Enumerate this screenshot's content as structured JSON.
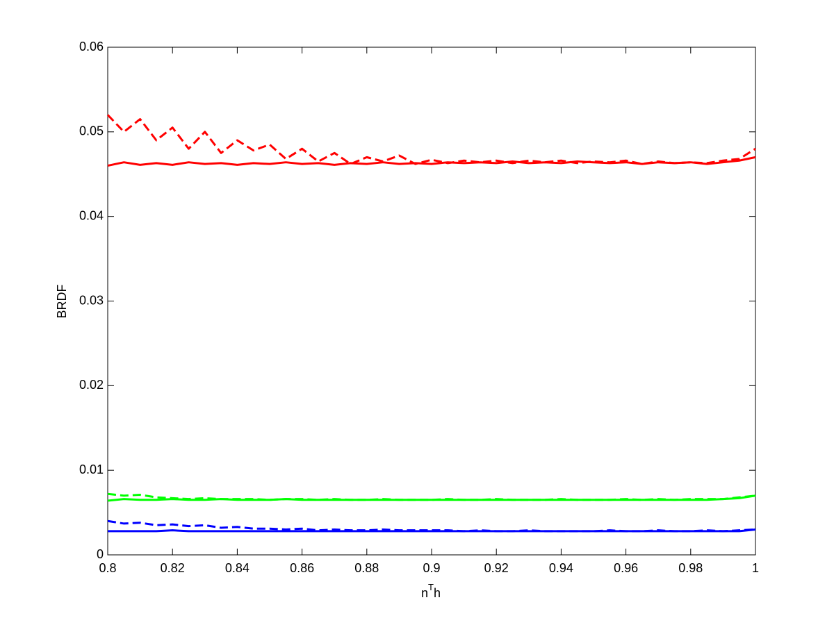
{
  "chart_data": {
    "type": "line",
    "xlabel": [
      "n",
      "T",
      "h"
    ],
    "ylabel": "BRDF",
    "x": [
      0.8,
      0.805,
      0.81,
      0.815,
      0.82,
      0.825,
      0.83,
      0.835,
      0.84,
      0.845,
      0.85,
      0.855,
      0.86,
      0.865,
      0.87,
      0.875,
      0.88,
      0.885,
      0.89,
      0.895,
      0.9,
      0.905,
      0.91,
      0.915,
      0.92,
      0.925,
      0.93,
      0.935,
      0.94,
      0.945,
      0.95,
      0.955,
      0.96,
      0.965,
      0.97,
      0.975,
      0.98,
      0.985,
      0.99,
      0.995,
      1
    ],
    "series": [
      {
        "color": "#ff0000",
        "dash": false,
        "values": [
          0.046,
          0.0464,
          0.0461,
          0.0463,
          0.0461,
          0.0464,
          0.0462,
          0.0463,
          0.0461,
          0.0463,
          0.0462,
          0.0464,
          0.0462,
          0.0463,
          0.0461,
          0.0463,
          0.0462,
          0.0464,
          0.0462,
          0.0463,
          0.0462,
          0.0464,
          0.0463,
          0.0464,
          0.0463,
          0.0465,
          0.0463,
          0.0464,
          0.0463,
          0.0465,
          0.0464,
          0.0463,
          0.0464,
          0.0462,
          0.0464,
          0.0463,
          0.0464,
          0.0462,
          0.0464,
          0.0466,
          0.047
        ]
      },
      {
        "color": "#ff0000",
        "dash": true,
        "values": [
          0.052,
          0.05,
          0.0515,
          0.049,
          0.0505,
          0.048,
          0.05,
          0.0475,
          0.049,
          0.0478,
          0.0485,
          0.0468,
          0.048,
          0.0465,
          0.0475,
          0.0462,
          0.047,
          0.0465,
          0.0472,
          0.0462,
          0.0467,
          0.0463,
          0.0466,
          0.0464,
          0.0466,
          0.0463,
          0.0466,
          0.0464,
          0.0466,
          0.0463,
          0.0465,
          0.0464,
          0.0466,
          0.0462,
          0.0465,
          0.0463,
          0.0464,
          0.0463,
          0.0466,
          0.0468,
          0.048
        ]
      },
      {
        "color": "#00ff00",
        "dash": false,
        "values": [
          0.0064,
          0.0066,
          0.0065,
          0.0065,
          0.0066,
          0.0065,
          0.0065,
          0.0066,
          0.0065,
          0.0065,
          0.0065,
          0.0066,
          0.0065,
          0.0065,
          0.0065,
          0.0065,
          0.0065,
          0.0065,
          0.0065,
          0.0065,
          0.0065,
          0.0065,
          0.0065,
          0.0065,
          0.0065,
          0.0065,
          0.0065,
          0.0065,
          0.0065,
          0.0065,
          0.0065,
          0.0065,
          0.0065,
          0.0065,
          0.0065,
          0.0065,
          0.0065,
          0.0065,
          0.0066,
          0.0067,
          0.007
        ]
      },
      {
        "color": "#00ff00",
        "dash": true,
        "values": [
          0.0072,
          0.007,
          0.0071,
          0.0068,
          0.0067,
          0.0066,
          0.0067,
          0.0066,
          0.0066,
          0.0066,
          0.0065,
          0.0066,
          0.0066,
          0.0065,
          0.0066,
          0.0065,
          0.0065,
          0.0066,
          0.0065,
          0.0065,
          0.0065,
          0.0066,
          0.0065,
          0.0065,
          0.0066,
          0.0065,
          0.0065,
          0.0065,
          0.0066,
          0.0065,
          0.0065,
          0.0065,
          0.0066,
          0.0065,
          0.0066,
          0.0065,
          0.0066,
          0.0066,
          0.0066,
          0.0068,
          0.007
        ]
      },
      {
        "color": "#0000ff",
        "dash": false,
        "values": [
          0.0028,
          0.0028,
          0.0028,
          0.0028,
          0.0029,
          0.0028,
          0.0028,
          0.0028,
          0.0028,
          0.0028,
          0.0028,
          0.0028,
          0.0028,
          0.0028,
          0.0028,
          0.0028,
          0.0028,
          0.0028,
          0.0028,
          0.0028,
          0.0028,
          0.0028,
          0.0028,
          0.0028,
          0.0028,
          0.0028,
          0.0028,
          0.0028,
          0.0028,
          0.0028,
          0.0028,
          0.0028,
          0.0028,
          0.0028,
          0.0028,
          0.0028,
          0.0028,
          0.0028,
          0.0028,
          0.0028,
          0.003
        ]
      },
      {
        "color": "#0000ff",
        "dash": true,
        "values": [
          0.004,
          0.0037,
          0.0038,
          0.0035,
          0.0036,
          0.0034,
          0.0035,
          0.0032,
          0.0033,
          0.0031,
          0.0031,
          0.003,
          0.0031,
          0.0029,
          0.003,
          0.0029,
          0.0029,
          0.003,
          0.0029,
          0.0029,
          0.0029,
          0.0029,
          0.0028,
          0.0029,
          0.0028,
          0.0028,
          0.0029,
          0.0028,
          0.0028,
          0.0028,
          0.0028,
          0.0029,
          0.0028,
          0.0028,
          0.0029,
          0.0028,
          0.0028,
          0.0029,
          0.0028,
          0.0029,
          0.003
        ]
      }
    ],
    "xlim": [
      0.8,
      1
    ],
    "ylim": [
      0,
      0.06
    ],
    "xticks": [
      0.8,
      0.82,
      0.84,
      0.86,
      0.88,
      0.9,
      0.92,
      0.94,
      0.96,
      0.98,
      1
    ],
    "yticks": [
      0,
      0.01,
      0.02,
      0.03,
      0.04,
      0.05,
      0.06
    ],
    "grid": false
  }
}
